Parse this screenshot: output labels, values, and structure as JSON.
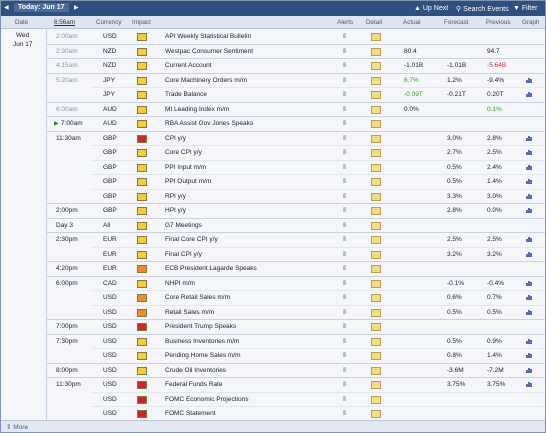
{
  "toolbar": {
    "today": "Today: Jun 17",
    "up_next": "Up Next",
    "search": "Search Events",
    "filter": "Filter"
  },
  "columns": {
    "date": "Date",
    "time": "6:56am",
    "currency": "Currency",
    "impact": "Impact",
    "alerts": "Alerts",
    "detail": "Detail",
    "actual": "Actual",
    "forecast": "Forecast",
    "previous": "Previous",
    "graph": "Graph"
  },
  "day": "Wed",
  "date": "Jun 17",
  "rows": [
    {
      "time": "2:00am",
      "past": true,
      "currency": "USD",
      "impact": "yellow",
      "event": "API Weekly Statistical Bulletin"
    },
    {
      "time": "2:30am",
      "past": true,
      "currency": "NZD",
      "impact": "yellow",
      "event": "Westpac Consumer Sentiment",
      "actual": "80.4",
      "previous": "94.7"
    },
    {
      "time": "4:15am",
      "past": true,
      "currency": "NZD",
      "impact": "yellow",
      "event": "Current Account",
      "actual": "-1.01B",
      "forecast": "-1.01B",
      "previous": "-5.64B",
      "previous_tone": "worse"
    },
    {
      "time": "5:20am",
      "past": true,
      "currency": "JPY",
      "impact": "yellow",
      "event": "Core Machinery Orders m/m",
      "actual": "6.7%",
      "actual_tone": "better",
      "forecast": "1.2%",
      "previous": "-9.4%",
      "graph": true
    },
    {
      "currency": "JPY",
      "impact": "yellow",
      "event": "Trade Balance",
      "actual": "-0.09T",
      "actual_tone": "better",
      "forecast": "-0.21T",
      "previous": "0.20T",
      "graph": true
    },
    {
      "time": "6:00am",
      "past": true,
      "currency": "AUD",
      "impact": "yellow",
      "event": "MI Leading Index m/m",
      "actual": "0.0%",
      "previous": "0.1%",
      "previous_tone": "better"
    },
    {
      "time": "7:00am",
      "playing": true,
      "currency": "AUD",
      "impact": "yellow",
      "event": "RBA Assist Gov Jones Speaks"
    },
    {
      "time": "11:30am",
      "currency": "GBP",
      "impact": "red",
      "event": "CPI y/y",
      "forecast": "3.0%",
      "previous": "2.8%",
      "graph": true
    },
    {
      "currency": "GBP",
      "impact": "yellow",
      "event": "Core CPI y/y",
      "forecast": "2.7%",
      "previous": "2.5%",
      "graph": true
    },
    {
      "currency": "GBP",
      "impact": "yellow",
      "event": "PPI Input m/m",
      "forecast": "0.5%",
      "previous": "2.4%",
      "graph": true
    },
    {
      "currency": "GBP",
      "impact": "yellow",
      "event": "PPI Output m/m",
      "forecast": "0.5%",
      "previous": "1.4%",
      "graph": true
    },
    {
      "currency": "GBP",
      "impact": "yellow",
      "event": "RPI y/y",
      "forecast": "3.3%",
      "previous": "3.0%",
      "graph": true
    },
    {
      "time": "2:00pm",
      "currency": "GBP",
      "impact": "yellow",
      "event": "HPI y/y",
      "forecast": "2.8%",
      "previous": "0.0%",
      "graph": true
    },
    {
      "time": "Day 3",
      "currency": "All",
      "impact": "yellow",
      "event": "G7 Meetings"
    },
    {
      "time": "2:30pm",
      "currency": "EUR",
      "impact": "yellow",
      "event": "Final Core CPI y/y",
      "forecast": "2.5%",
      "previous": "2.5%",
      "graph": true
    },
    {
      "currency": "EUR",
      "impact": "yellow",
      "event": "Final CPI y/y",
      "forecast": "3.2%",
      "previous": "3.2%",
      "graph": true
    },
    {
      "time": "4:20pm",
      "currency": "EUR",
      "impact": "orange",
      "event": "ECB President Lagarde Speaks"
    },
    {
      "time": "6:00pm",
      "currency": "CAD",
      "impact": "yellow",
      "event": "NHPI m/m",
      "forecast": "-0.1%",
      "previous": "-0.4%",
      "graph": true
    },
    {
      "currency": "USD",
      "impact": "orange",
      "event": "Core Retail Sales m/m",
      "forecast": "0.6%",
      "previous": "0.7%",
      "graph": true
    },
    {
      "currency": "USD",
      "impact": "orange",
      "event": "Retail Sales m/m",
      "forecast": "0.5%",
      "previous": "0.5%",
      "graph": true
    },
    {
      "time": "7:00pm",
      "currency": "USD",
      "impact": "red",
      "event": "President Trump Speaks"
    },
    {
      "time": "7:30pm",
      "currency": "USD",
      "impact": "yellow",
      "event": "Business Inventories m/m",
      "forecast": "0.5%",
      "previous": "0.9%",
      "graph": true
    },
    {
      "currency": "USD",
      "impact": "yellow",
      "event": "Pending Home Sales m/m",
      "forecast": "0.8%",
      "previous": "1.4%",
      "graph": true
    },
    {
      "time": "8:00pm",
      "currency": "USD",
      "impact": "yellow",
      "event": "Crude Oil Inventories",
      "forecast": "-3.6M",
      "previous": "-7.2M",
      "graph": true
    },
    {
      "time": "11:30pm",
      "currency": "USD",
      "impact": "red",
      "event": "Federal Funds Rate",
      "forecast": "3.75%",
      "previous": "3.75%",
      "graph": true
    },
    {
      "currency": "USD",
      "impact": "red",
      "event": "FOMC Economic Projections"
    },
    {
      "currency": "USD",
      "impact": "red",
      "event": "FOMC Statement"
    }
  ],
  "footer": {
    "more": "More"
  }
}
